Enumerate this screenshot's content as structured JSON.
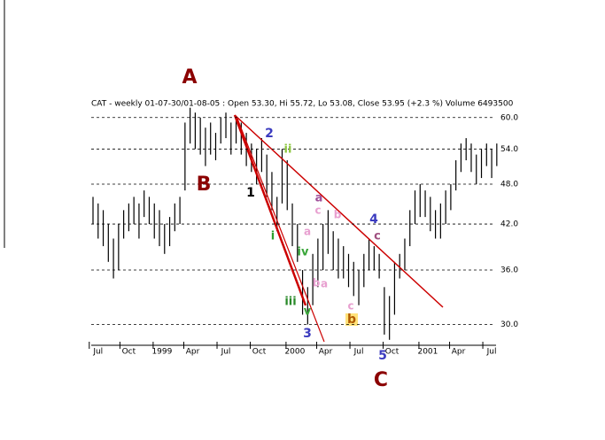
{
  "chart_data": {
    "type": "hilo",
    "title": "CAT - weekly 01-07-30/01-08-05 : Open 53.30, Hi 55.72, Lo 53.08, Close 53.95 (+2.3 %) Volume 6493500",
    "color": "#000000",
    "log_scale": true,
    "grid": true,
    "highs": [
      46,
      45,
      44,
      42,
      40,
      42,
      44,
      45,
      46,
      45,
      47,
      46,
      45,
      44,
      42,
      43,
      45,
      46,
      59,
      62,
      61,
      60,
      58,
      59,
      57,
      60,
      61,
      59,
      60,
      59,
      57,
      55,
      54,
      56,
      53,
      50,
      46,
      54,
      52,
      45,
      42,
      36,
      34,
      38,
      40,
      42,
      44,
      41,
      40,
      39,
      38,
      37,
      36,
      38,
      40,
      39,
      38,
      34,
      33,
      37,
      38,
      40,
      44,
      47,
      48,
      47,
      46,
      44,
      45,
      47,
      48,
      52,
      55,
      56,
      55,
      53,
      54,
      55,
      54,
      55
    ],
    "lows": [
      42,
      40,
      39,
      37,
      35,
      36,
      40,
      41,
      42,
      40,
      43,
      42,
      40,
      39,
      38,
      39,
      41,
      42,
      47,
      55,
      54,
      53,
      51,
      53,
      52,
      55,
      56,
      53,
      55,
      53,
      51,
      50,
      48,
      50,
      46,
      44,
      41,
      45,
      44,
      39,
      37,
      31,
      30,
      32,
      34,
      36,
      38,
      36,
      35,
      35,
      34,
      33,
      32,
      34,
      36,
      36,
      35,
      29,
      28.5,
      31,
      35,
      36,
      39,
      42,
      43,
      43,
      41,
      40,
      40,
      42,
      44,
      47,
      50,
      52,
      50,
      48,
      49,
      51,
      49,
      51
    ],
    "ylim": [
      28.4,
      61.4
    ],
    "yticks": [
      {
        "value": 30,
        "label": "30.0"
      },
      {
        "value": 36,
        "label": "36.0"
      },
      {
        "value": 42,
        "label": "42.0"
      },
      {
        "value": 48,
        "label": "48.0"
      },
      {
        "value": 54,
        "label": "54.0"
      },
      {
        "value": 60,
        "label": "60.0"
      }
    ],
    "xticks": [
      {
        "value": 1,
        "label": "Jul"
      },
      {
        "value": 7,
        "label": "Oct"
      },
      {
        "value": 13.5,
        "label": "1999"
      },
      {
        "value": 19.5,
        "label": "Apr"
      },
      {
        "value": 26,
        "label": "Jul"
      },
      {
        "value": 32.5,
        "label": "Oct"
      },
      {
        "value": 39.5,
        "label": "2000"
      },
      {
        "value": 45.5,
        "label": "Apr"
      },
      {
        "value": 52,
        "label": "Jul"
      },
      {
        "value": 58.5,
        "label": "Oct"
      },
      {
        "value": 65.5,
        "label": "2001"
      },
      {
        "value": 71.5,
        "label": "Apr"
      },
      {
        "value": 78,
        "label": "Jul"
      }
    ],
    "annotations": [
      {
        "text": "A",
        "color": "#8b0000"
      },
      {
        "text": "B",
        "color": "#8b0000"
      },
      {
        "text": "C",
        "color": "#8b0000"
      },
      {
        "text": "1",
        "color": "#000000"
      },
      {
        "text": "2",
        "color": "#3b3bbf"
      },
      {
        "text": "3",
        "color": "#3b3bbf"
      },
      {
        "text": "4",
        "color": "#3b3bbf"
      },
      {
        "text": "5",
        "color": "#3b3bbf"
      },
      {
        "text": "i",
        "color": "#2ca02c"
      },
      {
        "text": "ii",
        "color": "#8cc63f"
      },
      {
        "text": "iii",
        "color": "#2a8a2a"
      },
      {
        "text": "iv",
        "color": "#3aa63a"
      },
      {
        "text": "v",
        "color": "#3aa63a"
      },
      {
        "text": "a",
        "color": "#a0509a"
      },
      {
        "text": "c",
        "color": "#e8a0d0"
      },
      {
        "text": "b",
        "color": "#e8a0d0"
      },
      {
        "text": "a",
        "color": "#e8a0d0"
      },
      {
        "text": "b",
        "color": "#e8a0d0"
      },
      {
        "text": "a",
        "color": "#e8a0d0"
      },
      {
        "text": "c",
        "color": "#e8a0d0"
      },
      {
        "text": "b",
        "color": "#b05a00"
      },
      {
        "text": "c",
        "color": "#a05080"
      }
    ]
  }
}
